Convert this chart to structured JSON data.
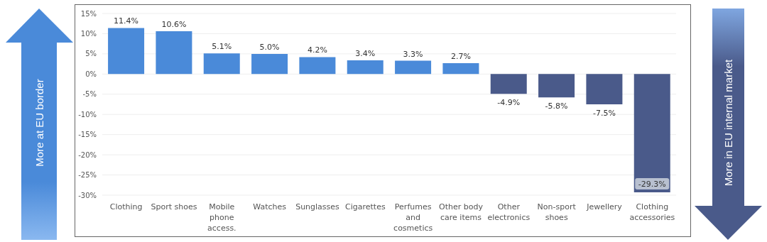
{
  "chart_data": {
    "type": "bar",
    "categories": [
      "Clothing",
      "Sport shoes",
      "Mobile phone access.",
      "Watches",
      "Sunglasses",
      "Cigarettes",
      "Perfumes and cosmetics",
      "Other body care items",
      "Other electronics",
      "Non-sport shoes",
      "Jewellery",
      "Clothing accessories"
    ],
    "values": [
      11.4,
      10.6,
      5.1,
      5.0,
      4.2,
      3.4,
      3.3,
      2.7,
      -4.9,
      -5.8,
      -7.5,
      -29.3
    ],
    "value_labels": [
      "11.4%",
      "10.6%",
      "5.1%",
      "5.0%",
      "4.2%",
      "3.4%",
      "3.3%",
      "2.7%",
      "-4.9%",
      "-5.8%",
      "-7.5%",
      "-29.3%"
    ],
    "colors": [
      "#4a8ad9",
      "#4a8ad9",
      "#4a8ad9",
      "#4a8ad9",
      "#4a8ad9",
      "#4a8ad9",
      "#4a8ad9",
      "#4a8ad9",
      "#4a5a8a",
      "#4a5a8a",
      "#4a5a8a",
      "#4a5a8a"
    ],
    "ylim": [
      -30,
      15
    ],
    "yticks": [
      {
        "value": 15,
        "label": "15%"
      },
      {
        "value": 10,
        "label": "10%"
      },
      {
        "value": 5,
        "label": "5%"
      },
      {
        "value": 0,
        "label": "0%"
      },
      {
        "value": -5,
        "label": "-5%"
      },
      {
        "value": -10,
        "label": "-10%"
      },
      {
        "value": -15,
        "label": "-15%"
      },
      {
        "value": -20,
        "label": "-20%"
      },
      {
        "value": -25,
        "label": "-25%"
      },
      {
        "value": -30,
        "label": "-30%"
      }
    ],
    "grid": "y",
    "annotations": [
      "More at EU border",
      "More in EU internal market"
    ]
  }
}
